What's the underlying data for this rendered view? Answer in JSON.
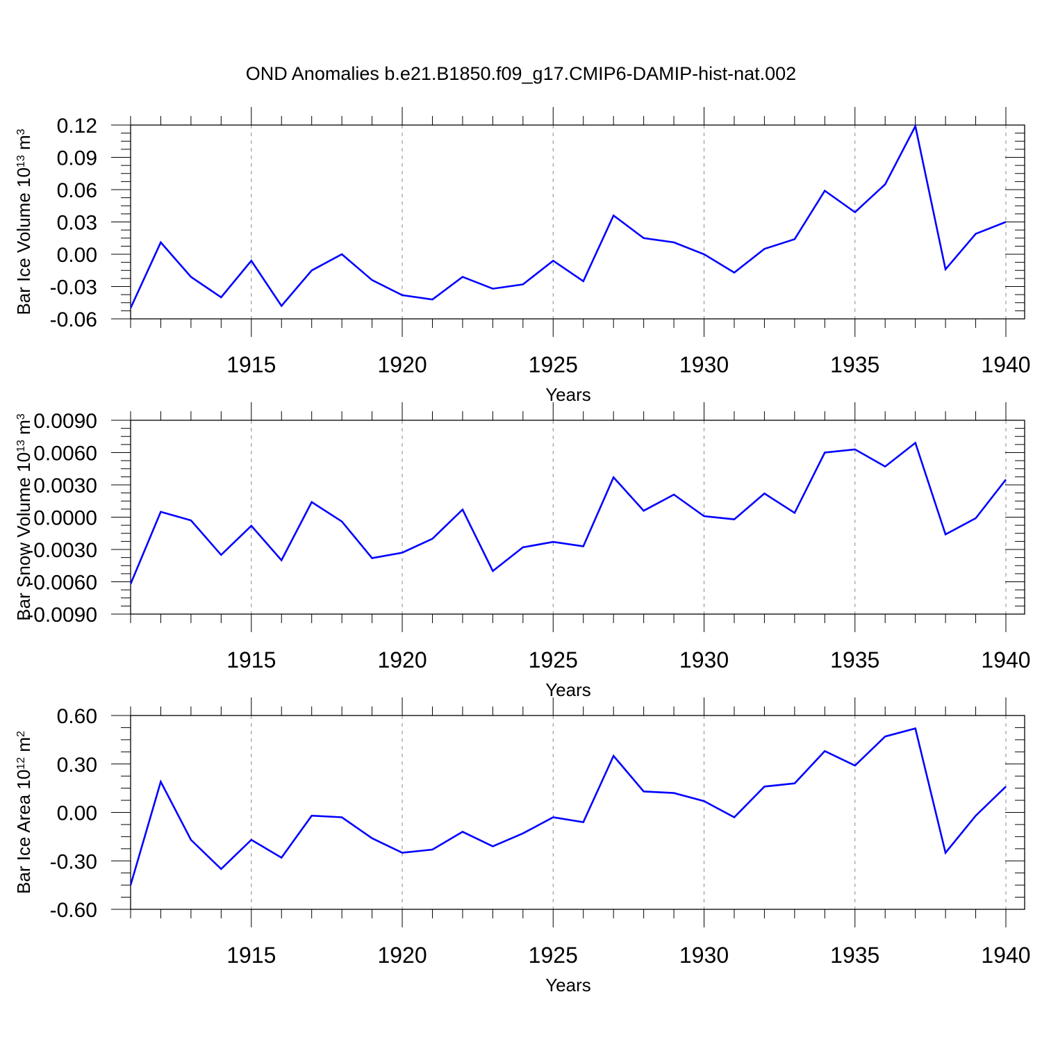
{
  "title": "OND Anomalies b.e21.B1850.f09_g17.CMIP6-DAMIP-hist-nat.002",
  "colors": {
    "series": "#0000ff",
    "axis": "#000000",
    "grid": "#888888"
  },
  "chart_data": [
    {
      "type": "line",
      "ylabel": {
        "main": "Bar Ice Volume 10",
        "exp": "13",
        "unit": " m",
        "unit_exp": "3"
      },
      "xlabel": "Years",
      "xlim": [
        1911,
        1940
      ],
      "ylim": [
        -0.06,
        0.12
      ],
      "yticks": [
        -0.06,
        -0.03,
        0.0,
        0.03,
        0.06,
        0.09,
        0.12
      ],
      "ytick_labels": [
        "-0.06",
        "-0.03",
        "0.00",
        "0.03",
        "0.06",
        "0.09",
        "0.12"
      ],
      "xticks": [
        1915,
        1920,
        1925,
        1930,
        1935,
        1940
      ],
      "xtick_labels": [
        "1915",
        "1920",
        "1925",
        "1930",
        "1935",
        "1940"
      ],
      "grid": "vertical dashed at labeled years",
      "x": [
        1911,
        1912,
        1913,
        1914,
        1915,
        1916,
        1917,
        1918,
        1919,
        1920,
        1921,
        1922,
        1923,
        1924,
        1925,
        1926,
        1927,
        1928,
        1929,
        1930,
        1931,
        1932,
        1933,
        1934,
        1935,
        1936,
        1937,
        1938,
        1939,
        1940
      ],
      "values": [
        -0.05,
        0.011,
        -0.021,
        -0.04,
        -0.006,
        -0.048,
        -0.015,
        0.0,
        -0.024,
        -0.038,
        -0.042,
        -0.021,
        -0.032,
        -0.028,
        -0.006,
        -0.025,
        0.036,
        0.015,
        0.011,
        0.0,
        -0.017,
        0.005,
        0.014,
        0.059,
        0.039,
        0.065,
        0.119,
        -0.014,
        0.019,
        0.03
      ]
    },
    {
      "type": "line",
      "ylabel": {
        "main": "Bar Snow Volume 10",
        "exp": "13",
        "unit": " m",
        "unit_exp": "3"
      },
      "xlabel": "Years",
      "xlim": [
        1911,
        1940
      ],
      "ylim": [
        -0.009,
        0.009
      ],
      "yticks": [
        -0.009,
        -0.006,
        -0.003,
        0.0,
        0.003,
        0.006,
        0.009
      ],
      "ytick_labels": [
        "-0.0090",
        "-0.0060",
        "-0.0030",
        "0.0000",
        "0.0030",
        "0.0060",
        "0.0090"
      ],
      "xticks": [
        1915,
        1920,
        1925,
        1930,
        1935,
        1940
      ],
      "xtick_labels": [
        "1915",
        "1920",
        "1925",
        "1930",
        "1935",
        "1940"
      ],
      "grid": "vertical dashed at labeled years",
      "x": [
        1911,
        1912,
        1913,
        1914,
        1915,
        1916,
        1917,
        1918,
        1919,
        1920,
        1921,
        1922,
        1923,
        1924,
        1925,
        1926,
        1927,
        1928,
        1929,
        1930,
        1931,
        1932,
        1933,
        1934,
        1935,
        1936,
        1937,
        1938,
        1939,
        1940
      ],
      "values": [
        -0.0062,
        0.0005,
        -0.0003,
        -0.0035,
        -0.0008,
        -0.004,
        0.0014,
        -0.0004,
        -0.0038,
        -0.0033,
        -0.002,
        0.0007,
        -0.005,
        -0.0028,
        -0.0023,
        -0.0027,
        0.0037,
        0.0006,
        0.0021,
        0.0001,
        -0.0002,
        0.0022,
        0.0004,
        0.006,
        0.0063,
        0.0047,
        0.0069,
        -0.0016,
        -0.0001,
        0.0035
      ]
    },
    {
      "type": "line",
      "ylabel": {
        "main": "Bar Ice Area 10",
        "exp": "12",
        "unit": " m",
        "unit_exp": "2"
      },
      "xlabel": "Years",
      "xlim": [
        1911,
        1940
      ],
      "ylim": [
        -0.6,
        0.6
      ],
      "yticks": [
        -0.6,
        -0.3,
        0.0,
        0.3,
        0.6
      ],
      "ytick_labels": [
        "-0.60",
        "-0.30",
        "0.00",
        "0.30",
        "0.60"
      ],
      "xticks": [
        1915,
        1920,
        1925,
        1930,
        1935,
        1940
      ],
      "xtick_labels": [
        "1915",
        "1920",
        "1925",
        "1930",
        "1935",
        "1940"
      ],
      "grid": "vertical dashed at labeled years",
      "x": [
        1911,
        1912,
        1913,
        1914,
        1915,
        1916,
        1917,
        1918,
        1919,
        1920,
        1921,
        1922,
        1923,
        1924,
        1925,
        1926,
        1927,
        1928,
        1929,
        1930,
        1931,
        1932,
        1933,
        1934,
        1935,
        1936,
        1937,
        1938,
        1939,
        1940
      ],
      "values": [
        -0.45,
        0.19,
        -0.17,
        -0.35,
        -0.17,
        -0.28,
        -0.02,
        -0.03,
        -0.16,
        -0.25,
        -0.23,
        -0.12,
        -0.21,
        -0.13,
        -0.03,
        -0.06,
        0.35,
        0.13,
        0.12,
        0.07,
        -0.03,
        0.16,
        0.18,
        0.38,
        0.29,
        0.47,
        0.52,
        -0.25,
        -0.02,
        0.16
      ]
    }
  ]
}
